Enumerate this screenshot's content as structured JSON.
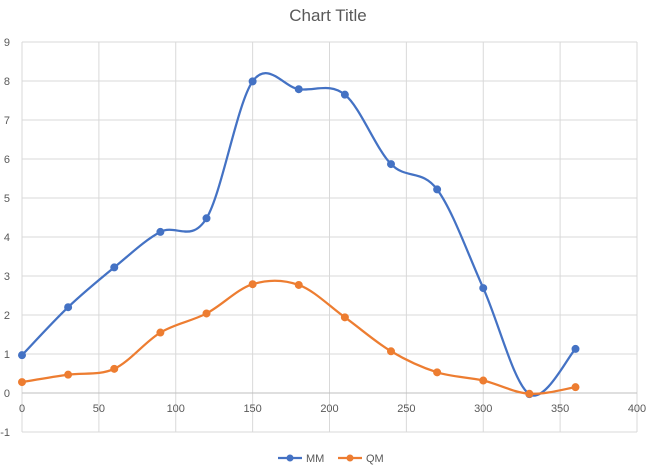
{
  "chart_data": {
    "type": "scatter",
    "title": "Chart Title",
    "xlabel": "",
    "ylabel": "",
    "xlim": [
      0,
      400
    ],
    "ylim": [
      -1,
      9
    ],
    "x_ticks": [
      0,
      50,
      100,
      150,
      200,
      250,
      300,
      350,
      400
    ],
    "y_ticks": [
      -1,
      0,
      1,
      2,
      3,
      4,
      5,
      6,
      7,
      8,
      9
    ],
    "grid": true,
    "smooth_lines": true,
    "markers": true,
    "legend_position": "bottom",
    "series": [
      {
        "name": "MM",
        "color": "#4472C4",
        "points": [
          [
            0,
            0.97
          ],
          [
            30,
            2.2
          ],
          [
            60,
            3.22
          ],
          [
            90,
            4.13
          ],
          [
            120,
            4.48
          ],
          [
            150,
            7.99
          ],
          [
            180,
            7.79
          ],
          [
            210,
            7.65
          ],
          [
            240,
            5.87
          ],
          [
            270,
            5.22
          ],
          [
            300,
            2.69
          ],
          [
            330,
            -0.03
          ],
          [
            360,
            1.13
          ]
        ]
      },
      {
        "name": "QM",
        "color": "#ED7D31",
        "points": [
          [
            0,
            0.28
          ],
          [
            30,
            0.47
          ],
          [
            60,
            0.62
          ],
          [
            90,
            1.55
          ],
          [
            120,
            2.04
          ],
          [
            150,
            2.79
          ],
          [
            180,
            2.77
          ],
          [
            210,
            1.94
          ],
          [
            240,
            1.07
          ],
          [
            270,
            0.53
          ],
          [
            300,
            0.32
          ],
          [
            330,
            -0.02
          ],
          [
            360,
            0.15
          ]
        ]
      }
    ]
  }
}
